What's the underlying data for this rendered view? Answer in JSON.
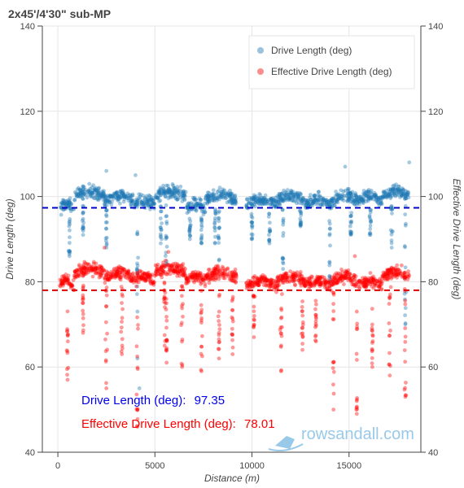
{
  "chart_data": {
    "type": "scatter",
    "title": "2x45'/4'30\" sub-MP",
    "xlabel": "Distance (m)",
    "ylabel": "Drive Length (deg)",
    "y2label": "Effective Drive Length (deg)",
    "xlim": [
      -800,
      18700
    ],
    "ylim": [
      40,
      140
    ],
    "xticks": [
      0,
      5000,
      10000,
      15000
    ],
    "yticks": [
      40,
      60,
      80,
      100,
      120,
      140
    ],
    "grid": true,
    "legend_position": "top-right",
    "series": [
      {
        "name": "Drive Length (deg)",
        "color": "#1f77b4",
        "mean": 97.35,
        "segments": [
          {
            "x0": 100,
            "x1": 850,
            "level": 97
          },
          {
            "x0": 850,
            "x1": 2400,
            "level": 100
          },
          {
            "x0": 2400,
            "x1": 3900,
            "level": 99
          },
          {
            "x0": 3900,
            "x1": 5000,
            "level": 98
          },
          {
            "x0": 5000,
            "x1": 6600,
            "level": 100
          },
          {
            "x0": 6600,
            "x1": 7600,
            "level": 97
          },
          {
            "x0": 7600,
            "x1": 9200,
            "level": 99
          },
          {
            "x0": 9700,
            "x1": 11300,
            "level": 98
          },
          {
            "x0": 11300,
            "x1": 12700,
            "level": 99
          },
          {
            "x0": 12700,
            "x1": 14100,
            "level": 98
          },
          {
            "x0": 14100,
            "x1": 15500,
            "level": 99
          },
          {
            "x0": 15500,
            "x1": 16700,
            "level": 99
          },
          {
            "x0": 16700,
            "x1": 18100,
            "level": 100
          }
        ],
        "dips": [
          {
            "x": 600,
            "min": 86
          },
          {
            "x": 1300,
            "min": 91
          },
          {
            "x": 2500,
            "min": 88
          },
          {
            "x": 4100,
            "min": 73
          },
          {
            "x": 5300,
            "min": 89
          },
          {
            "x": 5600,
            "min": 84
          },
          {
            "x": 6800,
            "min": 90
          },
          {
            "x": 7400,
            "min": 89
          },
          {
            "x": 8100,
            "min": 89
          },
          {
            "x": 8300,
            "min": 85
          },
          {
            "x": 10000,
            "min": 90
          },
          {
            "x": 10900,
            "min": 89
          },
          {
            "x": 11600,
            "min": 83
          },
          {
            "x": 12500,
            "min": 93
          },
          {
            "x": 14000,
            "min": 80
          },
          {
            "x": 15100,
            "min": 91
          },
          {
            "x": 16100,
            "min": 91
          },
          {
            "x": 17200,
            "min": 88
          },
          {
            "x": 17900,
            "min": 70
          }
        ],
        "outliers": [
          {
            "x": 4100,
            "y": 62
          },
          {
            "x": 4200,
            "y": 55
          },
          {
            "x": 2500,
            "y": 106
          },
          {
            "x": 4000,
            "y": 105
          },
          {
            "x": 14800,
            "y": 107
          },
          {
            "x": 18100,
            "y": 108
          }
        ]
      },
      {
        "name": "Effective Drive Length (deg)",
        "color": "#ff0000",
        "mean": 78.01,
        "segments": [
          {
            "x0": 100,
            "x1": 850,
            "level": 79
          },
          {
            "x0": 850,
            "x1": 2400,
            "level": 82
          },
          {
            "x0": 2400,
            "x1": 3900,
            "level": 81
          },
          {
            "x0": 3900,
            "x1": 5000,
            "level": 80
          },
          {
            "x0": 5000,
            "x1": 6600,
            "level": 82
          },
          {
            "x0": 6600,
            "x1": 7600,
            "level": 80
          },
          {
            "x0": 7600,
            "x1": 9200,
            "level": 81
          },
          {
            "x0": 9700,
            "x1": 11300,
            "level": 79
          },
          {
            "x0": 11300,
            "x1": 12700,
            "level": 80
          },
          {
            "x0": 12700,
            "x1": 14100,
            "level": 79
          },
          {
            "x0": 14100,
            "x1": 15500,
            "level": 80
          },
          {
            "x0": 15500,
            "x1": 16700,
            "level": 79
          },
          {
            "x0": 16700,
            "x1": 18100,
            "level": 81
          }
        ],
        "dips": [
          {
            "x": 500,
            "min": 57
          },
          {
            "x": 1300,
            "min": 68
          },
          {
            "x": 2500,
            "min": 55
          },
          {
            "x": 3300,
            "min": 63
          },
          {
            "x": 4100,
            "min": 46
          },
          {
            "x": 5500,
            "min": 65
          },
          {
            "x": 5600,
            "min": 61
          },
          {
            "x": 6400,
            "min": 60
          },
          {
            "x": 7400,
            "min": 59
          },
          {
            "x": 8300,
            "min": 62
          },
          {
            "x": 9000,
            "min": 63
          },
          {
            "x": 10100,
            "min": 67
          },
          {
            "x": 11500,
            "min": 59
          },
          {
            "x": 12600,
            "min": 64
          },
          {
            "x": 13300,
            "min": 66
          },
          {
            "x": 14200,
            "min": 50
          },
          {
            "x": 15400,
            "min": 49
          },
          {
            "x": 16200,
            "min": 60
          },
          {
            "x": 17100,
            "min": 58
          },
          {
            "x": 17900,
            "min": 53
          }
        ],
        "outliers": [
          {
            "x": 2400,
            "y": 88
          },
          {
            "x": 5700,
            "y": 87
          },
          {
            "x": 15300,
            "y": 86
          }
        ]
      }
    ]
  },
  "annotations": [
    {
      "label": "Drive Length (deg):",
      "value": "97.35",
      "color": "#0000ee"
    },
    {
      "label": "Effective Drive Length (deg):",
      "value": "78.01",
      "color": "#ff0000"
    }
  ],
  "watermark": {
    "text": "rowsandall.com",
    "color": "#8fc4e6"
  }
}
